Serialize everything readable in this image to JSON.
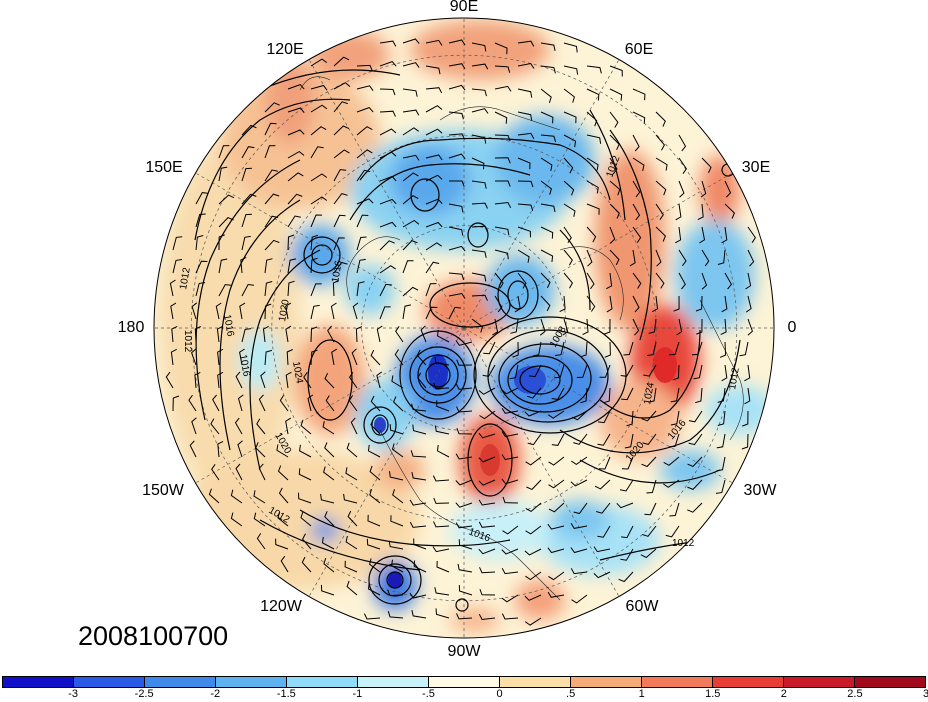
{
  "map": {
    "projection": "north polar stereographic",
    "timestamp": "2008100700",
    "longitude_labels": [
      {
        "text": "90E",
        "lon": 90
      },
      {
        "text": "60E",
        "lon": 60
      },
      {
        "text": "30E",
        "lon": 30
      },
      {
        "text": "0",
        "lon": 0
      },
      {
        "text": "30W",
        "lon": -30
      },
      {
        "text": "60W",
        "lon": -60
      },
      {
        "text": "90W",
        "lon": -90
      },
      {
        "text": "120W",
        "lon": -120
      },
      {
        "text": "150W",
        "lon": -150
      },
      {
        "text": "180",
        "lon": 180
      },
      {
        "text": "150E",
        "lon": 150
      },
      {
        "text": "120E",
        "lon": 120
      }
    ],
    "contour_labels": [
      "1012",
      "1016",
      "1020",
      "1024",
      "1008"
    ],
    "anomaly_colors": {
      "strong_negative": "#1a1ad6",
      "negative": "#4aa0ec",
      "weak_negative": "#b8ecf6",
      "weak_positive": "#fae6b4",
      "positive": "#f4a07a",
      "strong_positive": "#e8342a"
    }
  },
  "colorbar": {
    "colors": [
      "#1010c8",
      "#2a5ae6",
      "#3f8ae8",
      "#5fb2f0",
      "#90dcf8",
      "#c8f2fa",
      "#fdfbe6",
      "#fae0a6",
      "#f5ac78",
      "#f07a5a",
      "#e83c36",
      "#c81a28",
      "#a00a1a"
    ],
    "labels": [
      "-3",
      "-2.5",
      "-2",
      "-1.5",
      "-1",
      "-.5",
      "0",
      ".5",
      "1",
      "1.5",
      "2",
      "2.5",
      "3"
    ]
  }
}
